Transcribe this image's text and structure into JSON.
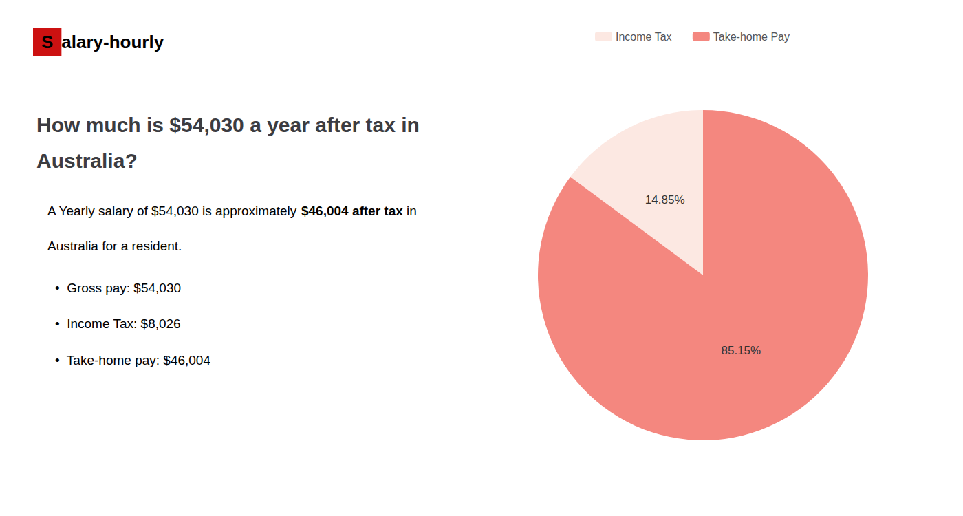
{
  "chart_data": {
    "type": "pie",
    "title": "How much is $54,030 a year after tax in\nAustralia?",
    "categories": [
      "Income Tax",
      "Take-home Pay"
    ],
    "values": [
      14.85,
      85.15
    ],
    "value_labels": [
      "14.85%",
      "85.15%"
    ],
    "colors": [
      "#fce8e2",
      "#f4877f"
    ],
    "data_labels": true,
    "legend": "top",
    "annotations": [
      [
        {
          "text": "S",
          "color": "#cc1111"
        },
        {
          "text": "alary-hourly"
        }
      ],
      [
        {
          "text": "A Yearly salary of $54,030 is approximately "
        },
        {
          "text": "$46,004 after tax",
          "color": "#cc1111"
        },
        {
          "text": " in"
        }
      ],
      [
        {
          "text": "Australia for a resident."
        }
      ],
      [
        {
          "text": "•  Gross pay: $54,030"
        }
      ],
      [
        {
          "text": "•  Income Tax: $8,026"
        }
      ],
      [
        {
          "text": "•  Take-home pay: $46,004"
        }
      ]
    ]
  }
}
